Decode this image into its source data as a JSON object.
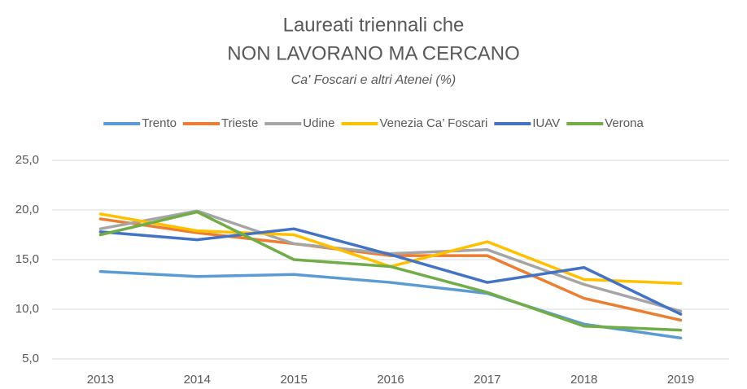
{
  "chart_data": {
    "type": "line",
    "title": [
      "Laureati triennali che",
      "NON LAVORANO MA CERCANO"
    ],
    "subtitle": "Ca' Foscari e altri Atenei (%)",
    "categories": [
      "2013",
      "2014",
      "2015",
      "2016",
      "2017",
      "2018",
      "2019"
    ],
    "series": [
      {
        "name": "Trento",
        "color": "#5b9bd5",
        "values": [
          13.8,
          13.3,
          13.5,
          12.7,
          11.6,
          8.5,
          7.1
        ]
      },
      {
        "name": "Trieste",
        "color": "#ed7d31",
        "values": [
          19.1,
          17.7,
          16.6,
          15.4,
          15.4,
          11.1,
          8.9
        ]
      },
      {
        "name": "Udine",
        "color": "#a5a5a5",
        "values": [
          18.1,
          19.9,
          16.6,
          15.6,
          16.0,
          12.5,
          9.8
        ]
      },
      {
        "name": "Venezia Ca’ Foscari",
        "color": "#ffc000",
        "values": [
          19.6,
          17.9,
          17.5,
          14.3,
          16.8,
          13.0,
          12.6
        ]
      },
      {
        "name": "IUAV",
        "color": "#4472c4",
        "values": [
          17.8,
          17.0,
          18.1,
          15.5,
          12.7,
          14.2,
          9.5
        ]
      },
      {
        "name": "Verona",
        "color": "#70ad47",
        "values": [
          17.5,
          19.8,
          15.0,
          14.3,
          11.7,
          8.3,
          7.9
        ]
      }
    ],
    "ylim": [
      5,
      25
    ],
    "yticks": [
      {
        "value": 5,
        "label": "5,0"
      },
      {
        "value": 10,
        "label": "10,0"
      },
      {
        "value": 15,
        "label": "15,0"
      },
      {
        "value": 20,
        "label": "20,0"
      },
      {
        "value": 25,
        "label": "25,0"
      }
    ],
    "grid": true,
    "legend": "top"
  }
}
